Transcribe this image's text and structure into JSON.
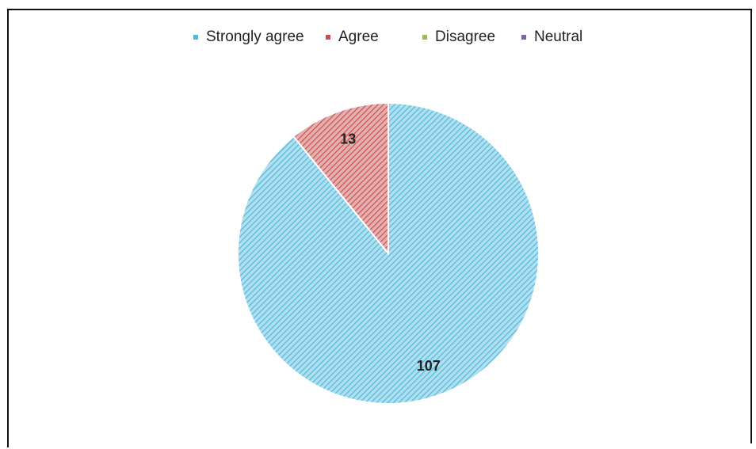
{
  "chart_data": {
    "type": "pie",
    "categories": [
      "Strongly agree",
      "Agree",
      "Disagree",
      "Neutral"
    ],
    "values": [
      107,
      13,
      0,
      0
    ],
    "colors": [
      "#4fb8dc",
      "#c9504f",
      "#9bbb59",
      "#7e63a6"
    ],
    "legend": "top"
  }
}
